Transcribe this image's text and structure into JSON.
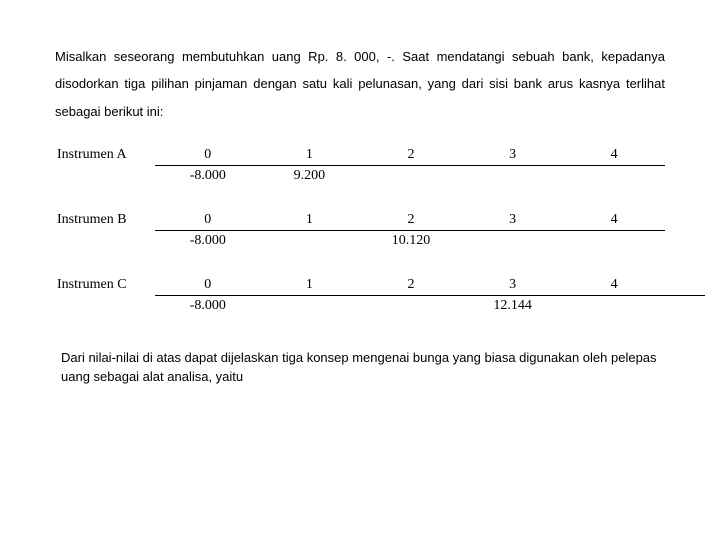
{
  "text": {
    "intro": "Misalkan seseorang membutuhkan uang Rp. 8. 000, -. Saat mendatangi sebuah bank, kepadanya disodorkan tiga pilihan pinjaman dengan satu kali pelunasan, yang dari sisi bank arus kasnya terlihat sebagai berikut ini:",
    "closing": "Dari nilai-nilai di atas dapat dijelaskan tiga konsep mengenai bunga yang biasa digunakan oleh pelepas uang sebagai alat analisa, yaitu"
  },
  "instruments": {
    "a": {
      "label": "Instrumen A",
      "periods": [
        "0",
        "1",
        "2",
        "3",
        "4"
      ],
      "flows": [
        "-8.000",
        "9.200",
        "",
        "",
        ""
      ]
    },
    "b": {
      "label": "Instrumen B",
      "periods": [
        "0",
        "1",
        "2",
        "3",
        "4"
      ],
      "flows": [
        "-8.000",
        "",
        "10.120",
        "",
        ""
      ]
    },
    "c": {
      "label": "Instrumen C",
      "periods": [
        "0",
        "1",
        "2",
        "3",
        "4"
      ],
      "flows": [
        "-8.000",
        "",
        "",
        "12.144",
        ""
      ]
    }
  },
  "style": {
    "body_font": "Arial",
    "table_font": "Times New Roman",
    "text_color": "#000000",
    "background_color": "#ffffff",
    "rule_color": "#000000",
    "intro_fontsize": 13,
    "table_fontsize": 14,
    "closing_fontsize": 13
  }
}
